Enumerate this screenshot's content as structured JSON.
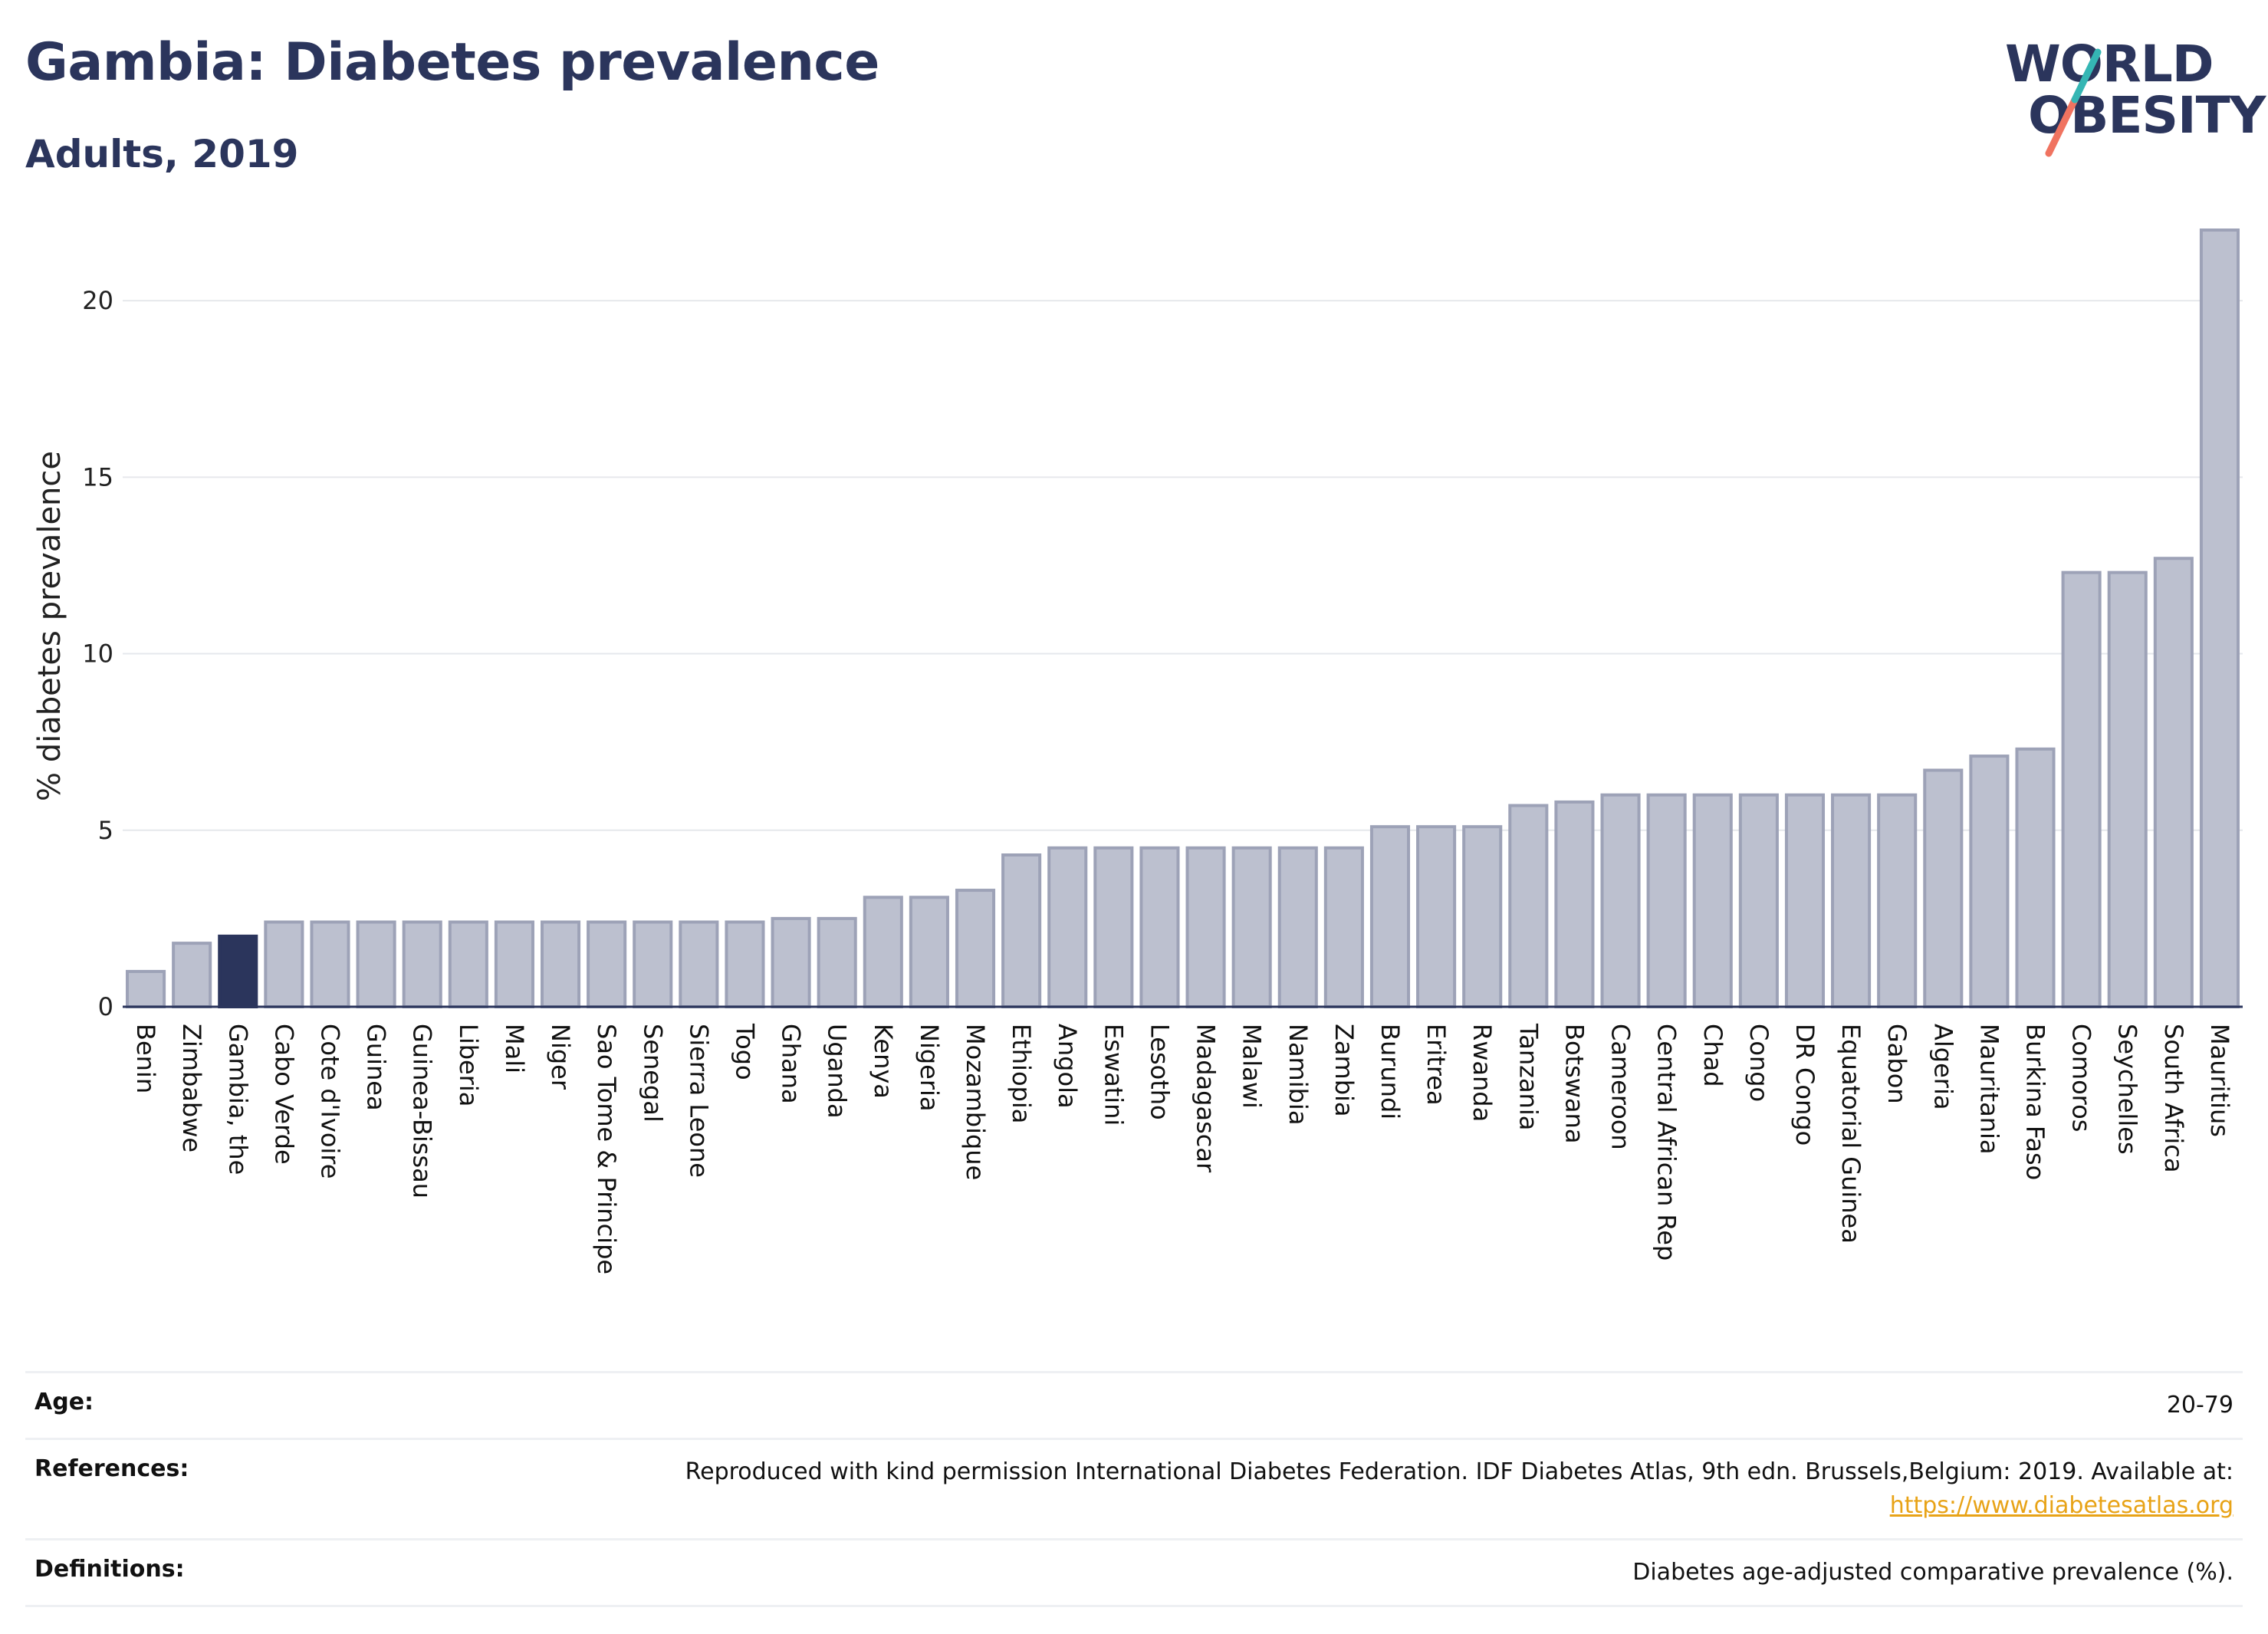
{
  "header": {
    "title": "Gambia: Diabetes prevalence",
    "subtitle": "Adults, 2019"
  },
  "logo": {
    "line1": "WORLD",
    "line2": "OBESITY",
    "accent_colors": [
      "#f07360",
      "#35b6b4"
    ]
  },
  "chart_data": {
    "type": "bar",
    "title": "Gambia: Diabetes prevalence",
    "subtitle": "Adults, 2019",
    "xlabel": "",
    "ylabel": "% diabetes prevalence",
    "ylim": [
      0,
      22
    ],
    "yticks": [
      0,
      5,
      10,
      15,
      20
    ],
    "grid": true,
    "highlight": "Gambia, the",
    "colors": {
      "bar": "#bcc0cf",
      "bar_edge": "#9da2b7",
      "highlight": "#2b355c",
      "grid": "#e6e8ec",
      "axis": "#2b355c"
    },
    "categories": [
      "Benin",
      "Zimbabwe",
      "Gambia, the",
      "Cabo Verde",
      "Cote d'Ivoire",
      "Guinea",
      "Guinea-Bissau",
      "Liberia",
      "Mali",
      "Niger",
      "Sao Tome & Principe",
      "Senegal",
      "Sierra Leone",
      "Togo",
      "Ghana",
      "Uganda",
      "Kenya",
      "Nigeria",
      "Mozambique",
      "Ethiopia",
      "Angola",
      "Eswatini",
      "Lesotho",
      "Madagascar",
      "Malawi",
      "Namibia",
      "Zambia",
      "Burundi",
      "Eritrea",
      "Rwanda",
      "Tanzania",
      "Botswana",
      "Cameroon",
      "Central African Rep",
      "Chad",
      "Congo",
      "DR Congo",
      "Equatorial Guinea",
      "Gabon",
      "Algeria",
      "Mauritania",
      "Burkina Faso",
      "Comoros",
      "Seychelles",
      "South Africa",
      "Mauritius"
    ],
    "values": [
      1.0,
      1.8,
      2.0,
      2.4,
      2.4,
      2.4,
      2.4,
      2.4,
      2.4,
      2.4,
      2.4,
      2.4,
      2.4,
      2.4,
      2.5,
      2.5,
      3.1,
      3.1,
      3.3,
      4.3,
      4.5,
      4.5,
      4.5,
      4.5,
      4.5,
      4.5,
      4.5,
      5.1,
      5.1,
      5.1,
      5.7,
      5.8,
      6.0,
      6.0,
      6.0,
      6.0,
      6.0,
      6.0,
      6.0,
      6.7,
      7.1,
      7.3,
      12.3,
      12.3,
      12.7,
      22.0
    ]
  },
  "info": {
    "rows": [
      {
        "label": "Age:",
        "value": "20-79"
      },
      {
        "label": "References:",
        "value": "Reproduced with kind permission International Diabetes Federation. IDF Diabetes Atlas, 9th edn. Brussels,Belgium: 2019. Available at:",
        "link": "https://www.diabetesatlas.org"
      },
      {
        "label": "Definitions:",
        "value": "Diabetes age-adjusted comparative prevalence (%)."
      }
    ]
  }
}
